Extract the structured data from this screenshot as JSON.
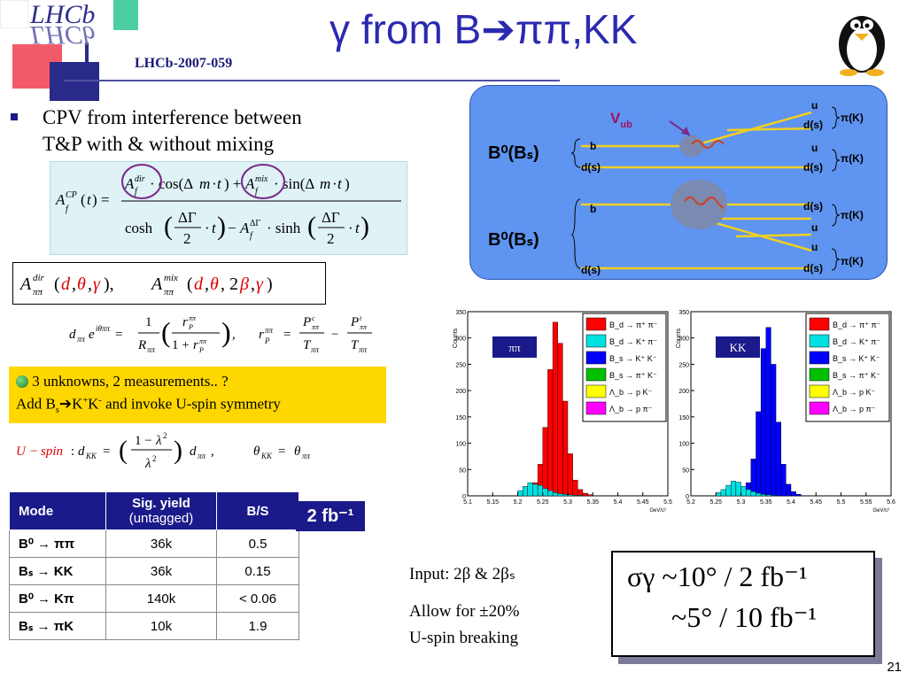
{
  "header": {
    "title": "γ from B➔ππ,KK",
    "logo_text": "LHCb",
    "reference": "LHCb-2007-059",
    "page_number": "21"
  },
  "bullet": {
    "line1": "CPV from interference between",
    "line2": "T&P with & without mixing"
  },
  "diagram": {
    "vub": "V",
    "vub_sub": "ub",
    "meson_top": "B⁰(Bₛ)",
    "meson_bottom": "B⁰(Bₛ)",
    "quarks_top_left": [
      "b",
      "d(s)"
    ],
    "quarks_bottom_left": [
      "b",
      "d(s)"
    ],
    "outputs": [
      "u",
      "d(s)",
      "u",
      "d(s)",
      "d(s)",
      "u",
      "u",
      "d(s)"
    ],
    "final_labels": [
      "π(K)",
      "π(K)",
      "π(K)",
      "π(K)"
    ]
  },
  "info_box": {
    "line1": "3 unknowns, 2 measurements.. ?",
    "line2": "Add B",
    "line2_sub": "s",
    "line2_rest": "➔K",
    "line2_sup": "+",
    "line2_rest2": "K",
    "line2_sup2": "-",
    "line2_end": " and invoke U-spin symmetry"
  },
  "table": {
    "headers": [
      "Mode",
      "Sig. yield",
      "(untagged)",
      "B/S"
    ],
    "rows": [
      {
        "mode": "B⁰ → ππ",
        "yield": "36k",
        "bs": "0.5"
      },
      {
        "mode": "Bₛ → KK",
        "yield": "36k",
        "bs": "0.15"
      },
      {
        "mode": "B⁰ → Kπ",
        "yield": "140k",
        "bs": "< 0.06"
      },
      {
        "mode": "Bₛ → πK",
        "yield": "10k",
        "bs": "1.9"
      }
    ]
  },
  "lumi_badge": "2 fb⁻¹",
  "input_text": {
    "line1": "Input: 2β & 2βₛ",
    "line2": "Allow for ±20%",
    "line3": "U-spin breaking"
  },
  "result": {
    "line1": "σγ ~10° / 2 fb⁻¹",
    "line2": "~5° / 10 fb⁻¹"
  },
  "colors": {
    "title_blue": "#2a2ab0",
    "badge_blue": "#1a1a8a",
    "highlight_yellow": "#ffd700",
    "diagram_blue": "#5f94f0",
    "formula_bg": "#dff2f6"
  },
  "chart_data": [
    {
      "type": "bar",
      "tag": "ππ",
      "ylabel": "Counts",
      "xlabel": "GeV/c²",
      "xlim": [
        5.1,
        5.5
      ],
      "ylim": [
        0,
        350
      ],
      "x_ticks": [
        "5.1",
        "5.15",
        "5.2",
        "5.25",
        "5.3",
        "5.35",
        "5.4",
        "5.45",
        "5.5"
      ],
      "y_ticks": [
        "0",
        "50",
        "100",
        "150",
        "200",
        "250",
        "300",
        "350"
      ],
      "legend": [
        "B_d → π⁺ π⁻",
        "B_d → K⁺ π⁻",
        "B_s → K⁺ K⁻",
        "B_s → π⁺ K⁻",
        "Λ_b → p K⁻",
        "Λ_b → p π⁻"
      ],
      "legend_colors": [
        "#ff0000",
        "#00e0e0",
        "#0000ff",
        "#00c000",
        "#ffff00",
        "#ff00ff"
      ],
      "series": [
        {
          "name": "B_d → π⁺ π⁻",
          "color": "#ff0000",
          "x_start": 5.2,
          "bin_width": 0.01,
          "values": [
            5,
            8,
            12,
            25,
            60,
            130,
            240,
            330,
            290,
            180,
            80,
            30,
            12,
            5,
            2
          ]
        },
        {
          "name": "B_d → K⁺ π⁻",
          "color": "#00e0e0",
          "x_start": 5.2,
          "bin_width": 0.01,
          "values": [
            10,
            18,
            25,
            22,
            20,
            14,
            10,
            6,
            4,
            3,
            2,
            1,
            1,
            0,
            0
          ]
        }
      ]
    },
    {
      "type": "bar",
      "tag": "KK",
      "ylabel": "Counts",
      "xlabel": "GeV/c²",
      "xlim": [
        5.2,
        5.6
      ],
      "ylim": [
        0,
        350
      ],
      "x_ticks": [
        "5.2",
        "5.25",
        "5.3",
        "5.35",
        "5.4",
        "5.45",
        "5.5",
        "5.55",
        "5.6"
      ],
      "y_ticks": [
        "0",
        "50",
        "100",
        "150",
        "200",
        "250",
        "300",
        "350"
      ],
      "legend": [
        "B_d → π⁺ π⁻",
        "B_d → K⁺ π⁻",
        "B_s → K⁺ K⁻",
        "B_s → π⁺ K⁻",
        "Λ_b → p K⁻",
        "Λ_b → p π⁻"
      ],
      "legend_colors": [
        "#ff0000",
        "#00e0e0",
        "#0000ff",
        "#00c000",
        "#ffff00",
        "#ff00ff"
      ],
      "series": [
        {
          "name": "B_s → K⁺ K⁻",
          "color": "#0000ff",
          "x_start": 5.29,
          "bin_width": 0.01,
          "values": [
            4,
            10,
            25,
            70,
            160,
            280,
            320,
            250,
            140,
            60,
            22,
            8,
            3
          ]
        },
        {
          "name": "B_d → K⁺ π⁻",
          "color": "#00e0e0",
          "x_start": 5.25,
          "bin_width": 0.01,
          "values": [
            6,
            12,
            20,
            28,
            26,
            18,
            12,
            8,
            5,
            3,
            2,
            1
          ]
        }
      ]
    }
  ]
}
